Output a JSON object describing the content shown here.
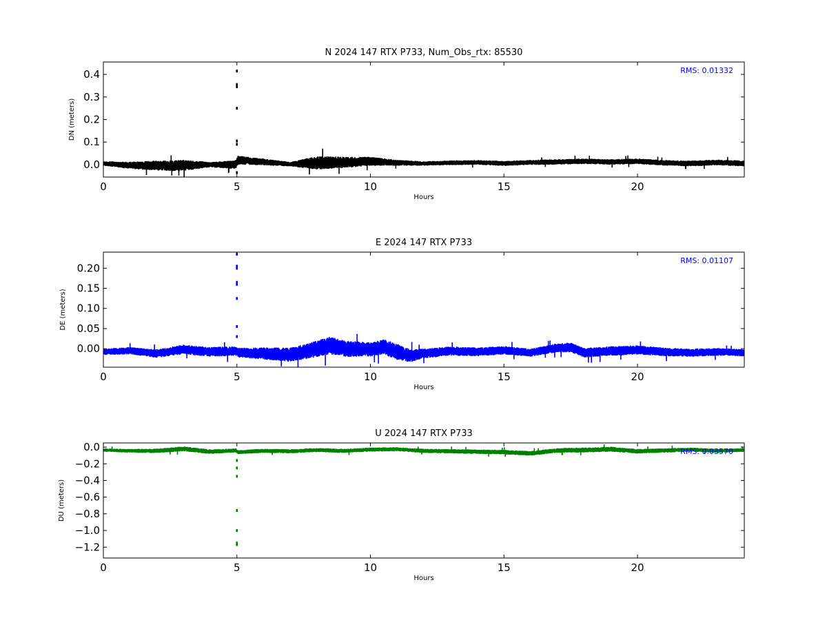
{
  "chart_data": [
    {
      "type": "line",
      "title": "N 2024 147 RTX  P733, Num_Obs_rtx: 85530",
      "xlabel": "Hours",
      "ylabel": "DN (meters)",
      "xlim": [
        0,
        24
      ],
      "ylim": [
        -0.055,
        0.455
      ],
      "xticks": [
        0,
        5,
        10,
        15,
        20
      ],
      "xtick_labels": [
        "0",
        "5",
        "10",
        "15",
        "20"
      ],
      "yticks": [
        0.0,
        0.1,
        0.2,
        0.3,
        0.4
      ],
      "ytick_labels": [
        "0.0",
        "0.1",
        "0.2",
        "0.3",
        "0.4"
      ],
      "grid": false,
      "color": "#000000",
      "annotation": "RMS:  0.01332",
      "annotation_color": "#0000ff",
      "series": [
        {
          "baseline": [
            [
              0,
              0.005
            ],
            [
              1,
              -0.003
            ],
            [
              2.5,
              -0.005
            ],
            [
              4,
              0.0
            ],
            [
              4.95,
              0.0
            ],
            [
              5.05,
              0.02
            ],
            [
              6,
              0.012
            ],
            [
              7,
              0.002
            ],
            [
              8,
              0.008
            ],
            [
              9,
              0.01
            ],
            [
              10,
              0.015
            ],
            [
              11,
              0.008
            ],
            [
              12,
              0.005
            ],
            [
              13,
              0.008
            ],
            [
              14,
              0.01
            ],
            [
              15,
              0.005
            ],
            [
              16,
              0.01
            ],
            [
              17,
              0.012
            ],
            [
              18,
              0.015
            ],
            [
              19,
              0.012
            ],
            [
              20,
              0.015
            ],
            [
              21,
              0.008
            ],
            [
              22,
              0.005
            ],
            [
              23,
              0.01
            ],
            [
              24,
              0.005
            ]
          ],
          "noise": [
            [
              0,
              0.01
            ],
            [
              2,
              0.022
            ],
            [
              3,
              0.025
            ],
            [
              4,
              0.012
            ],
            [
              5,
              0.02
            ],
            [
              6,
              0.015
            ],
            [
              7,
              0.01
            ],
            [
              8,
              0.03
            ],
            [
              9,
              0.025
            ],
            [
              10,
              0.02
            ],
            [
              11,
              0.013
            ],
            [
              12,
              0.01
            ],
            [
              17,
              0.012
            ],
            [
              18,
              0.012
            ],
            [
              24,
              0.013
            ]
          ],
          "spikes": [
            0.46,
            0.415,
            0.355,
            0.345,
            0.25,
            0.105,
            0.09,
            -0.035
          ]
        }
      ]
    },
    {
      "type": "line",
      "title": "E 2024 147 RTX  P733",
      "xlabel": "Hours",
      "ylabel": "DE (meters)",
      "xlim": [
        0,
        24
      ],
      "ylim": [
        -0.046,
        0.24
      ],
      "xticks": [
        0,
        5,
        10,
        15,
        20
      ],
      "xtick_labels": [
        "0",
        "5",
        "10",
        "15",
        "20"
      ],
      "yticks": [
        0.0,
        0.05,
        0.1,
        0.15,
        0.2
      ],
      "ytick_labels": [
        "0.00",
        "0.05",
        "0.10",
        "0.15",
        "0.20"
      ],
      "grid": false,
      "color": "#0000ff",
      "annotation": "RMS:  0.01107",
      "annotation_color": "#0000ff",
      "series": [
        {
          "baseline": [
            [
              0,
              -0.008
            ],
            [
              1,
              -0.005
            ],
            [
              2,
              -0.012
            ],
            [
              3,
              -0.002
            ],
            [
              4,
              -0.008
            ],
            [
              4.95,
              -0.006
            ],
            [
              5.05,
              -0.01
            ],
            [
              6,
              -0.012
            ],
            [
              7,
              -0.015
            ],
            [
              8,
              0.0
            ],
            [
              8.5,
              0.008
            ],
            [
              9,
              0.0
            ],
            [
              10,
              -0.002
            ],
            [
              10.5,
              0.005
            ],
            [
              11,
              -0.008
            ],
            [
              11.5,
              -0.018
            ],
            [
              12,
              -0.012
            ],
            [
              13,
              -0.006
            ],
            [
              14,
              -0.008
            ],
            [
              15,
              -0.004
            ],
            [
              16,
              -0.01
            ],
            [
              17,
              0.002
            ],
            [
              17.5,
              0.003
            ],
            [
              18,
              -0.01
            ],
            [
              19,
              -0.006
            ],
            [
              20,
              -0.003
            ],
            [
              21,
              -0.008
            ],
            [
              22,
              -0.01
            ],
            [
              23,
              -0.008
            ],
            [
              24,
              -0.01
            ]
          ],
          "noise": [
            [
              0,
              0.008
            ],
            [
              3,
              0.012
            ],
            [
              5,
              0.012
            ],
            [
              7,
              0.018
            ],
            [
              8.5,
              0.022
            ],
            [
              10,
              0.018
            ],
            [
              11,
              0.02
            ],
            [
              12,
              0.012
            ],
            [
              16,
              0.01
            ],
            [
              17.5,
              0.012
            ],
            [
              19,
              0.012
            ],
            [
              24,
              0.009
            ]
          ],
          "spikes": [
            0.235,
            0.205,
            0.2,
            0.165,
            0.16,
            0.125,
            0.055,
            0.03
          ]
        }
      ]
    },
    {
      "type": "line",
      "title": "U 2024 147 RTX  P733",
      "xlabel": "Hours",
      "ylabel": "DU (meters)",
      "xlim": [
        0,
        24
      ],
      "ylim": [
        -1.33,
        0.05
      ],
      "xticks": [
        0,
        5,
        10,
        15,
        20
      ],
      "xtick_labels": [
        "0",
        "5",
        "10",
        "15",
        "20"
      ],
      "yticks": [
        0.0,
        -0.2,
        -0.4,
        -0.6,
        -0.8,
        -1.0,
        -1.2
      ],
      "ytick_labels": [
        "0.0",
        "−0.2",
        "−0.4",
        "−0.6",
        "−0.8",
        "−1.0",
        "−1.2"
      ],
      "grid": false,
      "color": "#008000",
      "annotation": "RMS:  0.03570",
      "annotation_color": "#0000ff",
      "series": [
        {
          "baseline": [
            [
              0,
              -0.035
            ],
            [
              1,
              -0.045
            ],
            [
              2,
              -0.045
            ],
            [
              3,
              -0.02
            ],
            [
              4,
              -0.055
            ],
            [
              4.95,
              -0.04
            ],
            [
              5.05,
              -0.06
            ],
            [
              6,
              -0.045
            ],
            [
              7,
              -0.05
            ],
            [
              8,
              -0.035
            ],
            [
              9,
              -0.045
            ],
            [
              10,
              -0.03
            ],
            [
              11,
              -0.025
            ],
            [
              12,
              -0.045
            ],
            [
              13,
              -0.05
            ],
            [
              14,
              -0.055
            ],
            [
              15,
              -0.06
            ],
            [
              16,
              -0.075
            ],
            [
              17,
              -0.04
            ],
            [
              18,
              -0.035
            ],
            [
              19,
              -0.025
            ],
            [
              20,
              -0.05
            ],
            [
              21,
              -0.04
            ],
            [
              22,
              -0.03
            ],
            [
              23,
              -0.045
            ],
            [
              24,
              -0.035
            ]
          ],
          "noise": [
            [
              0,
              0.02
            ],
            [
              3,
              0.03
            ],
            [
              5,
              0.025
            ],
            [
              8,
              0.025
            ],
            [
              11,
              0.025
            ],
            [
              16,
              0.028
            ],
            [
              19,
              0.03
            ],
            [
              24,
              0.022
            ]
          ],
          "spikes": [
            -0.16,
            -0.25,
            -0.35,
            -0.76,
            -1.0,
            -1.15,
            -1.17
          ]
        }
      ]
    }
  ]
}
